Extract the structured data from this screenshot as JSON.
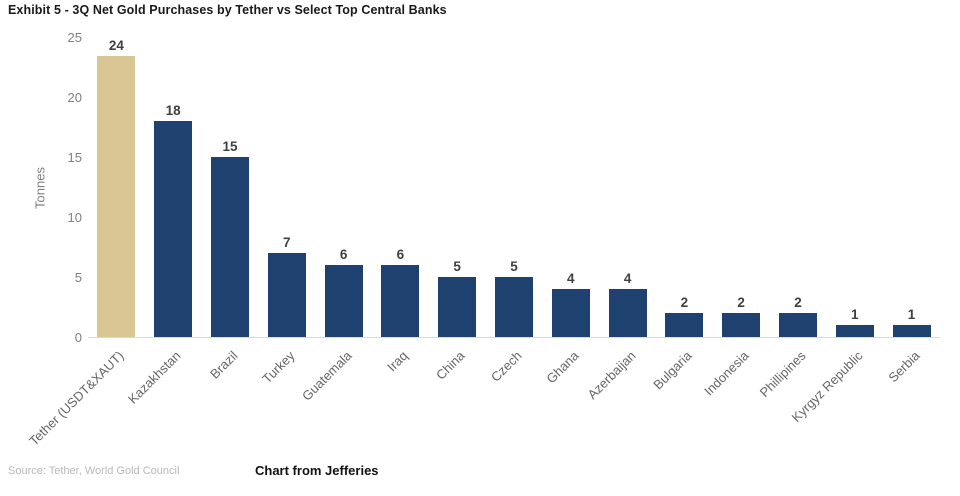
{
  "title": "Exhibit 5 - 3Q Net Gold Purchases by Tether vs Select Top Central Banks",
  "chart_data": {
    "type": "bar",
    "title": "Exhibit 5 - 3Q Net Gold Purchases by Tether vs Select Top Central Banks",
    "categories": [
      "Tether (USDT&XAUT)",
      "Kazakhstan",
      "Brazil",
      "Turkey",
      "Guatemala",
      "Iraq",
      "China",
      "Czech",
      "Ghana",
      "Azerbaijan",
      "Bulgaria",
      "Indonesia",
      "Phillipines",
      "Kyrgyz Republic",
      "Serbia"
    ],
    "values": [
      24,
      18,
      15,
      7,
      6,
      6,
      5,
      5,
      4,
      4,
      2,
      2,
      2,
      1,
      1
    ],
    "xlabel": "",
    "ylabel": "Tonnes",
    "ylim": [
      0,
      25
    ],
    "yticks": [
      0,
      5,
      10,
      15,
      20,
      25
    ],
    "grid": "off",
    "legend": "none",
    "highlight_index": 0,
    "colors": {
      "highlight_bar": "#d8c795",
      "default_bar": "#1e4170",
      "value_label": "#404040",
      "tick_label": "#808080",
      "axis_line": "#d9d9d9"
    }
  },
  "footer": {
    "source": "Source: Tether, World Gold Council",
    "credit": "Chart from Jefferies"
  }
}
